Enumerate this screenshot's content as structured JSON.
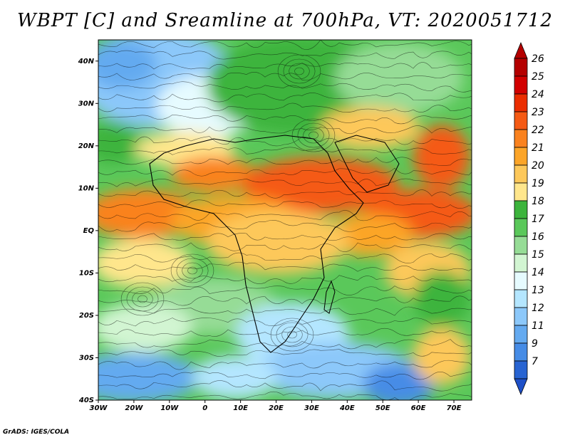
{
  "title": "WBPT [C] and Sreamline at 700hPa, VT: 2020051712",
  "credit": "GrADS: IGES/COLA",
  "map": {
    "lon_range": [
      -30,
      75
    ],
    "lat_range": [
      -40,
      45
    ],
    "lat_ticks": [
      {
        "value": 40,
        "label": "40N"
      },
      {
        "value": 30,
        "label": "30N"
      },
      {
        "value": 20,
        "label": "20N"
      },
      {
        "value": 10,
        "label": "10N"
      },
      {
        "value": 0,
        "label": "EQ"
      },
      {
        "value": -10,
        "label": "10S"
      },
      {
        "value": -20,
        "label": "20S"
      },
      {
        "value": -30,
        "label": "30S"
      },
      {
        "value": -40,
        "label": "40S"
      }
    ],
    "lon_ticks": [
      {
        "value": -30,
        "label": "30W"
      },
      {
        "value": -20,
        "label": "20W"
      },
      {
        "value": -10,
        "label": "10W"
      },
      {
        "value": 0,
        "label": "0"
      },
      {
        "value": 10,
        "label": "10E"
      },
      {
        "value": 20,
        "label": "20E"
      },
      {
        "value": 30,
        "label": "30E"
      },
      {
        "value": 40,
        "label": "40E"
      },
      {
        "value": 50,
        "label": "50E"
      },
      {
        "value": 60,
        "label": "60E"
      },
      {
        "value": 70,
        "label": "70E"
      }
    ]
  },
  "colorbar": {
    "levels": [
      {
        "label": "26",
        "color": "#b40000"
      },
      {
        "label": "25",
        "color": "#d20000"
      },
      {
        "label": "24",
        "color": "#eb2d00"
      },
      {
        "label": "23",
        "color": "#f55a14"
      },
      {
        "label": "22",
        "color": "#fa821e"
      },
      {
        "label": "21",
        "color": "#fca528"
      },
      {
        "label": "20",
        "color": "#fdc85a"
      },
      {
        "label": "19",
        "color": "#ffe68c"
      },
      {
        "label": "18",
        "color": "#3cb43c"
      },
      {
        "label": "17",
        "color": "#5ac85a"
      },
      {
        "label": "16",
        "color": "#96dc96"
      },
      {
        "label": "15",
        "color": "#d2f5d2"
      },
      {
        "label": "14",
        "color": "#e6fbff"
      },
      {
        "label": "13",
        "color": "#b4e6ff"
      },
      {
        "label": "12",
        "color": "#8cc8fa"
      },
      {
        "label": "11",
        "color": "#64aaf0"
      },
      {
        "label": "9",
        "color": "#468ce6"
      },
      {
        "label": "7",
        "color": "#2864d2"
      }
    ],
    "bottom_color": "#1e50c8"
  }
}
